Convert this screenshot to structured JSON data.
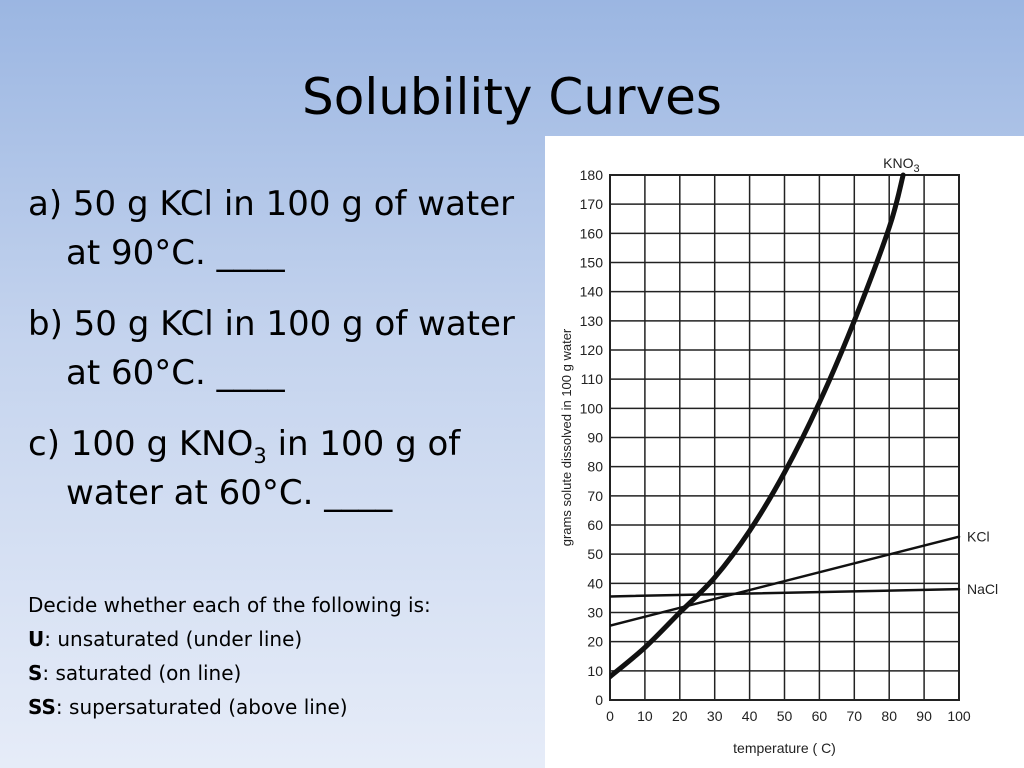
{
  "slide": {
    "title": "Solubility Curves",
    "questions": [
      {
        "letter": "a) ",
        "pre": "50 g KCl in 100 g of water at 90°C. ____",
        "sub": "",
        "post": ""
      },
      {
        "letter": "b) ",
        "pre": "50 g KCl in 100 g of water at 60°C. ____",
        "sub": "",
        "post": ""
      },
      {
        "letter": "c) ",
        "pre": "100 g KNO",
        "sub": "3",
        "post": " in 100 g of water at 60°C. ____"
      }
    ],
    "instructions": {
      "intro": "Decide whether each of the following is:",
      "options": [
        {
          "code": "U",
          "text": ": unsaturated (under line)"
        },
        {
          "code": "S",
          "text": ": saturated (on line)"
        },
        {
          "code": "SS",
          "text": ": supersaturated (above line)"
        }
      ]
    }
  },
  "chart_data": {
    "type": "line",
    "xlabel": "temperature (  C)",
    "ylabel": "grams solute dissolved in 100 g water",
    "xlim": [
      0,
      100
    ],
    "ylim": [
      0,
      180
    ],
    "xticks": [
      0,
      10,
      20,
      30,
      40,
      50,
      60,
      70,
      80,
      90,
      100
    ],
    "yticks": [
      0,
      10,
      20,
      30,
      40,
      50,
      60,
      70,
      80,
      90,
      100,
      110,
      120,
      130,
      140,
      150,
      160,
      170,
      180
    ],
    "grid": true,
    "series": [
      {
        "name": "KNO3",
        "label_main": "KNO",
        "label_sub": "3",
        "stroke_width": 5,
        "x": [
          0,
          10,
          20,
          30,
          40,
          50,
          60,
          70,
          80,
          84
        ],
        "y": [
          8,
          18,
          30,
          42,
          58,
          78,
          102,
          130,
          162,
          180
        ]
      },
      {
        "name": "KCl",
        "label_main": "KCl",
        "label_sub": "",
        "stroke_width": 2.5,
        "x": [
          0,
          100
        ],
        "y": [
          25.5,
          56
        ]
      },
      {
        "name": "NaCl",
        "label_main": "NaCl",
        "label_sub": "",
        "stroke_width": 2.5,
        "x": [
          0,
          100
        ],
        "y": [
          35.5,
          38
        ]
      }
    ]
  }
}
